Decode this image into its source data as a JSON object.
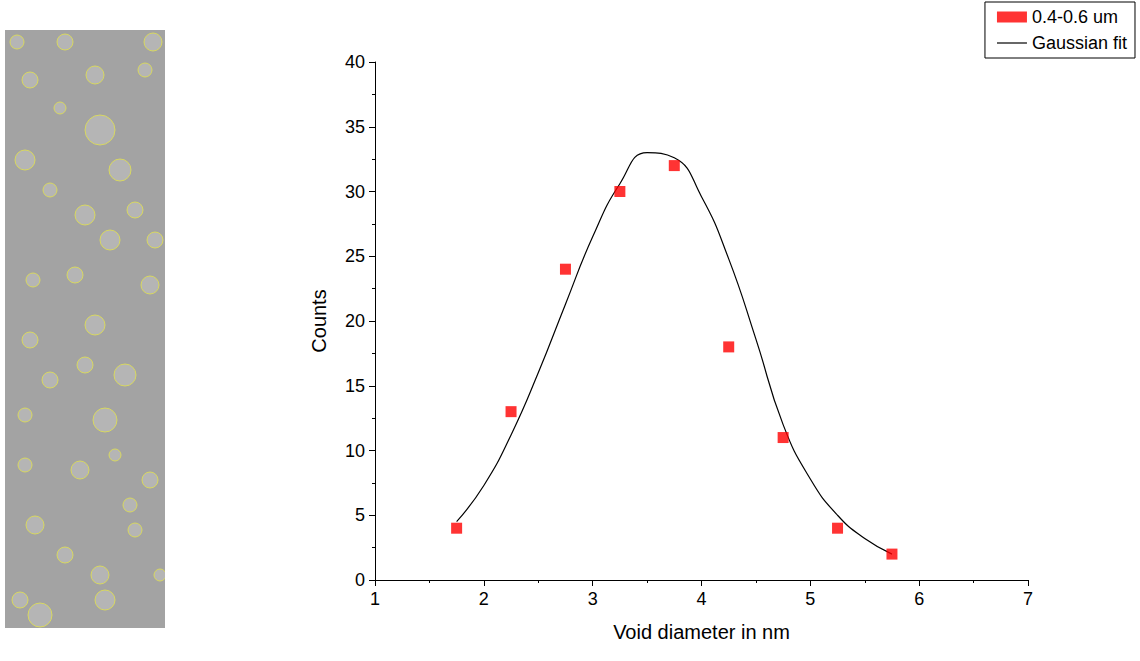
{
  "chart_data": {
    "type": "scatter",
    "x_label": "Void diameter in nm",
    "y_label": "Counts",
    "xlim": [
      1,
      7
    ],
    "xticks": [
      1,
      2,
      3,
      4,
      5,
      6,
      7
    ],
    "ylim": [
      0,
      40
    ],
    "yticks": [
      0,
      5,
      10,
      15,
      20,
      25,
      30,
      35,
      40
    ],
    "grid": false,
    "legend": "upper right",
    "series": [
      {
        "name": "0.4-0.6 um",
        "type": "scatter",
        "marker": "square",
        "color": "#ff0000",
        "x": [
          1.75,
          2.25,
          2.75,
          3.25,
          3.75,
          4.25,
          4.75,
          5.25,
          5.75
        ],
        "values": [
          4,
          13,
          24,
          30,
          32,
          18,
          11,
          4,
          2
        ]
      },
      {
        "name": "Gaussian fit",
        "type": "line",
        "line_style": "solid",
        "color": "#000000",
        "x": [
          1.75,
          2.0,
          2.25,
          2.5,
          2.75,
          3.0,
          3.25,
          3.5,
          3.75,
          4.0,
          4.25,
          4.5,
          4.75,
          5.0,
          5.25,
          5.5,
          5.75
        ],
        "values": [
          4.5,
          7.3,
          11.2,
          16.0,
          21.3,
          26.5,
          30.6,
          33.0,
          32.6,
          29.6,
          24.8,
          18.6,
          12.0,
          7.8,
          5.0,
          3.2,
          2.0
        ]
      }
    ]
  }
}
